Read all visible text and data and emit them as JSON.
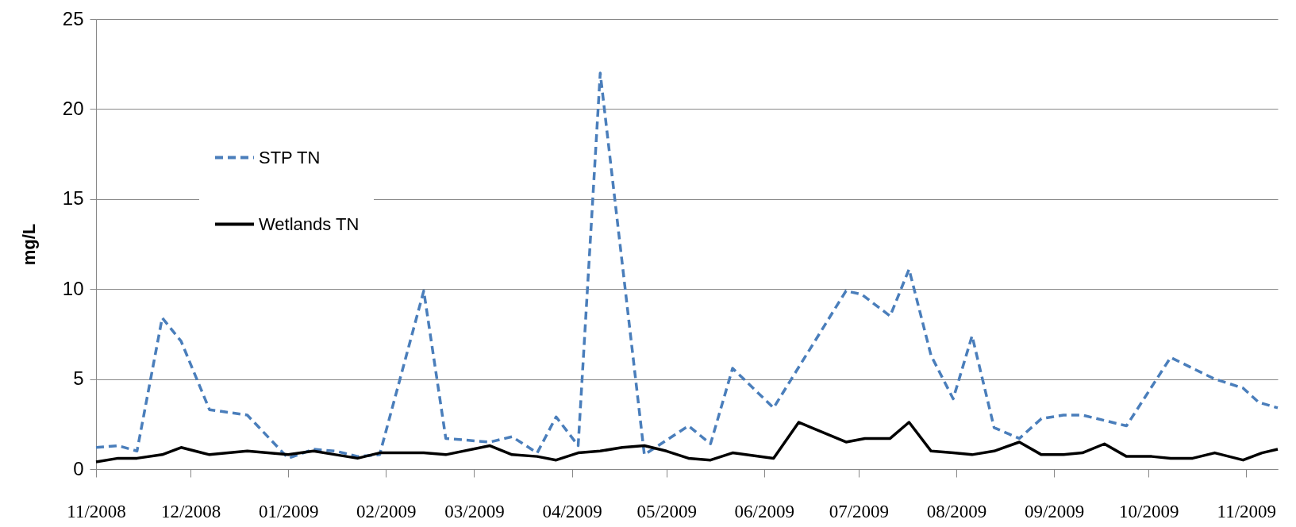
{
  "chart_data": {
    "type": "line",
    "ylabel": "mg/L",
    "xlim": [
      "2008-11-01",
      "2009-11-11"
    ],
    "xticks": [
      {
        "value": "2008-11-01",
        "label": "11/2008"
      },
      {
        "value": "2008-12-01",
        "label": "12/2008"
      },
      {
        "value": "2009-01-01",
        "label": "01/2009"
      },
      {
        "value": "2009-02-01",
        "label": "02/2009"
      },
      {
        "value": "2009-03-01",
        "label": "03/2009"
      },
      {
        "value": "2009-04-01",
        "label": "04/2009"
      },
      {
        "value": "2009-05-01",
        "label": "05/2009"
      },
      {
        "value": "2009-06-01",
        "label": "06/2009"
      },
      {
        "value": "2009-07-01",
        "label": "07/2009"
      },
      {
        "value": "2009-08-01",
        "label": "08/2009"
      },
      {
        "value": "2009-09-01",
        "label": "09/2009"
      },
      {
        "value": "2009-10-01",
        "label": "10/2009"
      },
      {
        "value": "2009-11-01",
        "label": "11/2009"
      }
    ],
    "ylim": [
      0,
      25
    ],
    "yticks": [
      0,
      5,
      10,
      15,
      20,
      25
    ],
    "grid": "y",
    "legend": "top left",
    "series": [
      {
        "name": "STP TN",
        "color": "#4a7ebb",
        "line_style": "dashed",
        "x": [
          "2008-11-01",
          "2008-11-08",
          "2008-11-14",
          "2008-11-22",
          "2008-11-28",
          "2008-12-07",
          "2008-12-19",
          "2009-01-01",
          "2009-01-09",
          "2009-01-16",
          "2009-01-23",
          "2009-01-30",
          "2009-02-13",
          "2009-02-20",
          "2009-03-06",
          "2009-03-13",
          "2009-03-21",
          "2009-03-27",
          "2009-04-03",
          "2009-04-10",
          "2009-04-24",
          "2009-05-08",
          "2009-05-15",
          "2009-05-22",
          "2009-06-04",
          "2009-06-27",
          "2009-07-02",
          "2009-07-11",
          "2009-07-17",
          "2009-07-24",
          "2009-07-31",
          "2009-08-06",
          "2009-08-13",
          "2009-08-21",
          "2009-08-28",
          "2009-09-04",
          "2009-09-10",
          "2009-09-24",
          "2009-10-08",
          "2009-10-22",
          "2009-10-31",
          "2009-11-05",
          "2009-11-11"
        ],
        "values": [
          1.2,
          1.3,
          1.0,
          8.4,
          7.1,
          3.3,
          3.0,
          0.6,
          1.1,
          1.0,
          0.7,
          0.8,
          9.9,
          1.7,
          1.5,
          1.8,
          0.9,
          2.9,
          1.3,
          22,
          0.8,
          2.4,
          1.4,
          5.6,
          3.4,
          9.9,
          9.7,
          8.5,
          11.1,
          6.3,
          3.9,
          7.4,
          2.3,
          1.7,
          2.8,
          3.0,
          3.0,
          2.4,
          6.2,
          5.0,
          4.5,
          3.7,
          3.4
        ]
      },
      {
        "name": "Wetlands TN",
        "color": "#000000",
        "line_style": "solid",
        "x": [
          "2008-11-01",
          "2008-11-08",
          "2008-11-14",
          "2008-11-22",
          "2008-11-28",
          "2008-12-07",
          "2008-12-19",
          "2009-01-01",
          "2009-01-09",
          "2009-01-16",
          "2009-01-23",
          "2009-01-30",
          "2009-02-13",
          "2009-02-20",
          "2009-03-06",
          "2009-03-13",
          "2009-03-21",
          "2009-03-27",
          "2009-04-03",
          "2009-04-10",
          "2009-04-17",
          "2009-04-24",
          "2009-05-01",
          "2009-05-08",
          "2009-05-15",
          "2009-05-22",
          "2009-06-04",
          "2009-06-12",
          "2009-06-27",
          "2009-07-03",
          "2009-07-11",
          "2009-07-17",
          "2009-07-24",
          "2009-07-31",
          "2009-08-06",
          "2009-08-13",
          "2009-08-21",
          "2009-08-28",
          "2009-09-04",
          "2009-09-10",
          "2009-09-17",
          "2009-09-24",
          "2009-10-02",
          "2009-10-08",
          "2009-10-15",
          "2009-10-22",
          "2009-10-31",
          "2009-11-06",
          "2009-11-11"
        ],
        "values": [
          0.4,
          0.6,
          0.6,
          0.8,
          1.2,
          0.8,
          1.0,
          0.8,
          1.0,
          0.8,
          0.6,
          0.9,
          0.9,
          0.8,
          1.3,
          0.8,
          0.7,
          0.5,
          0.9,
          1.0,
          1.2,
          1.3,
          1.0,
          0.6,
          0.5,
          0.9,
          0.6,
          2.6,
          1.5,
          1.7,
          1.7,
          2.6,
          1.0,
          0.9,
          0.8,
          1.0,
          1.5,
          0.8,
          0.8,
          0.9,
          1.4,
          0.7,
          0.7,
          0.6,
          0.6,
          0.9,
          0.5,
          0.9,
          1.1
        ]
      }
    ]
  }
}
